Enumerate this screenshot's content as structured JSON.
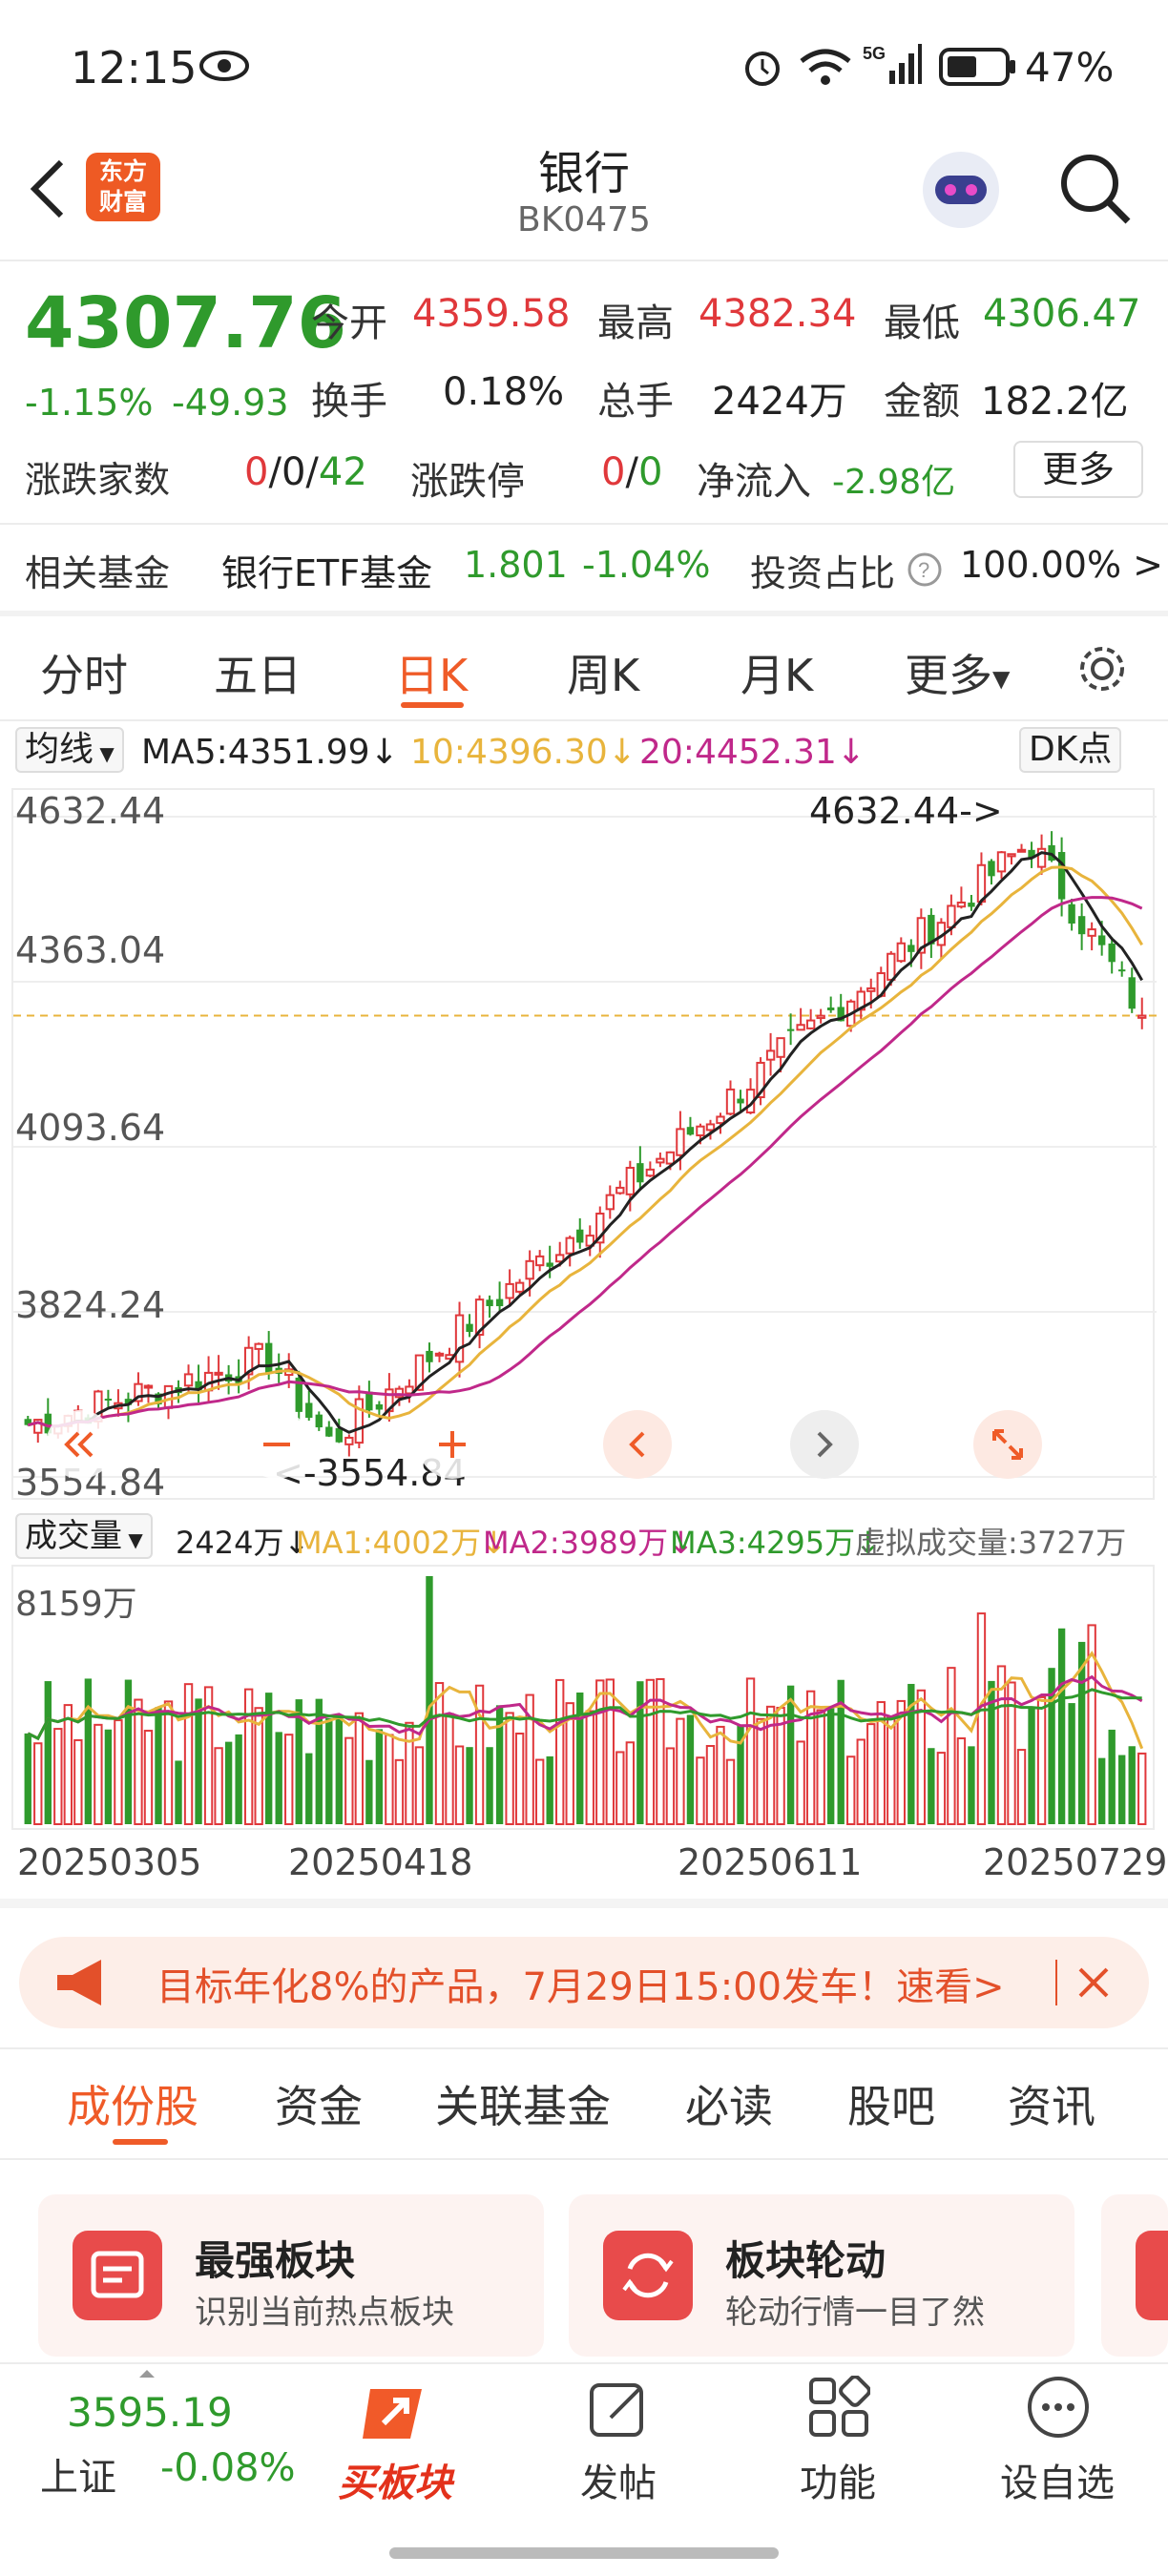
{
  "status": {
    "time": "12:15",
    "battery": "47%",
    "network": "5G"
  },
  "nav": {
    "title": "银行",
    "code": "BK0475",
    "logo_line1": "东方",
    "logo_line2": "财富"
  },
  "quote": {
    "price": "4307.76",
    "change_pct": "-1.15%",
    "change": "-49.93",
    "open_label": "今开",
    "open": "4359.58",
    "high_label": "最高",
    "high": "4382.34",
    "low_label": "最低",
    "low": "4306.47",
    "turnover_label": "换手",
    "turnover": "0.18%",
    "volume_label": "总手",
    "volume": "2424万",
    "amount_label": "金额",
    "amount": "182.2亿",
    "updown_label": "涨跌家数",
    "up": "0",
    "flat": "0",
    "down": "42",
    "limit_label": "涨跌停",
    "limit_up": "0",
    "limit_down": "0",
    "inflow_label": "净流入",
    "inflow": "-2.98亿",
    "more_label": "更多"
  },
  "fund": {
    "label": "相关基金",
    "name": "银行ETF基金",
    "price": "1.801",
    "pct": "-1.04%",
    "ratio_label": "投资占比",
    "ratio": "100.00% >"
  },
  "tabs": [
    "分时",
    "五日",
    "日K",
    "周K",
    "月K",
    "更多"
  ],
  "active_tab": "日K",
  "ma": {
    "selector": "均线",
    "ma5": "MA5:4351.99↓",
    "ma10": "10:4396.30↓",
    "ma20": "20:4452.31↓",
    "dk": "DK点"
  },
  "chart_yaxis": [
    "4632.44",
    "4363.04",
    "4093.64",
    "3824.24",
    "3554.84"
  ],
  "chart_marks": {
    "high": "4632.44->",
    "low": "<-3554.84"
  },
  "volume": {
    "selector": "成交量",
    "current": "2424万↓",
    "ma1": "MA1:4002万↓",
    "ma2": "MA2:3989万↓",
    "ma3": "MA3:4295万↓",
    "virtual": "虚拟成交量:3727万",
    "ymax": "8159万"
  },
  "dates": [
    "20250305",
    "20250418",
    "20250611",
    "20250729"
  ],
  "banner": {
    "text": "目标年化8%的产品，7月29日15:00发车！速看>"
  },
  "bottom_tabs": [
    "成份股",
    "资金",
    "关联基金",
    "必读",
    "股吧",
    "资讯"
  ],
  "cards": [
    {
      "title": "最强板块",
      "sub": "识别当前热点板块"
    },
    {
      "title": "板块轮动",
      "sub": "轮动行情一目了然"
    }
  ],
  "bottom_nav": {
    "index_value": "3595.19",
    "index_name": "上证",
    "index_pct": "-0.08%",
    "buy": "买板块",
    "post": "发帖",
    "func": "功能",
    "watch": "设自选"
  },
  "colors": {
    "up": "#e0383b",
    "down": "#2f9a2c",
    "accent": "#ef5b28",
    "ma5": "#222222",
    "ma10": "#e8b43c",
    "ma20": "#c0288a"
  },
  "chart_data": {
    "type": "candlestick",
    "title": "",
    "ylim": [
      3554.84,
      4632.44
    ],
    "x_labels": [
      "20250305",
      "20250418",
      "20250611",
      "20250729"
    ],
    "last_close": 4307.76,
    "ma": {
      "MA5": 4351.99,
      "MA10": 4396.3,
      "MA20": 4452.31
    },
    "high_mark": 4632.44,
    "low_mark": 3554.84,
    "volume_max_label": "8159万",
    "volume_ma": {
      "MA1": "4002万",
      "MA2": "3989万",
      "MA3": "4295万"
    }
  }
}
